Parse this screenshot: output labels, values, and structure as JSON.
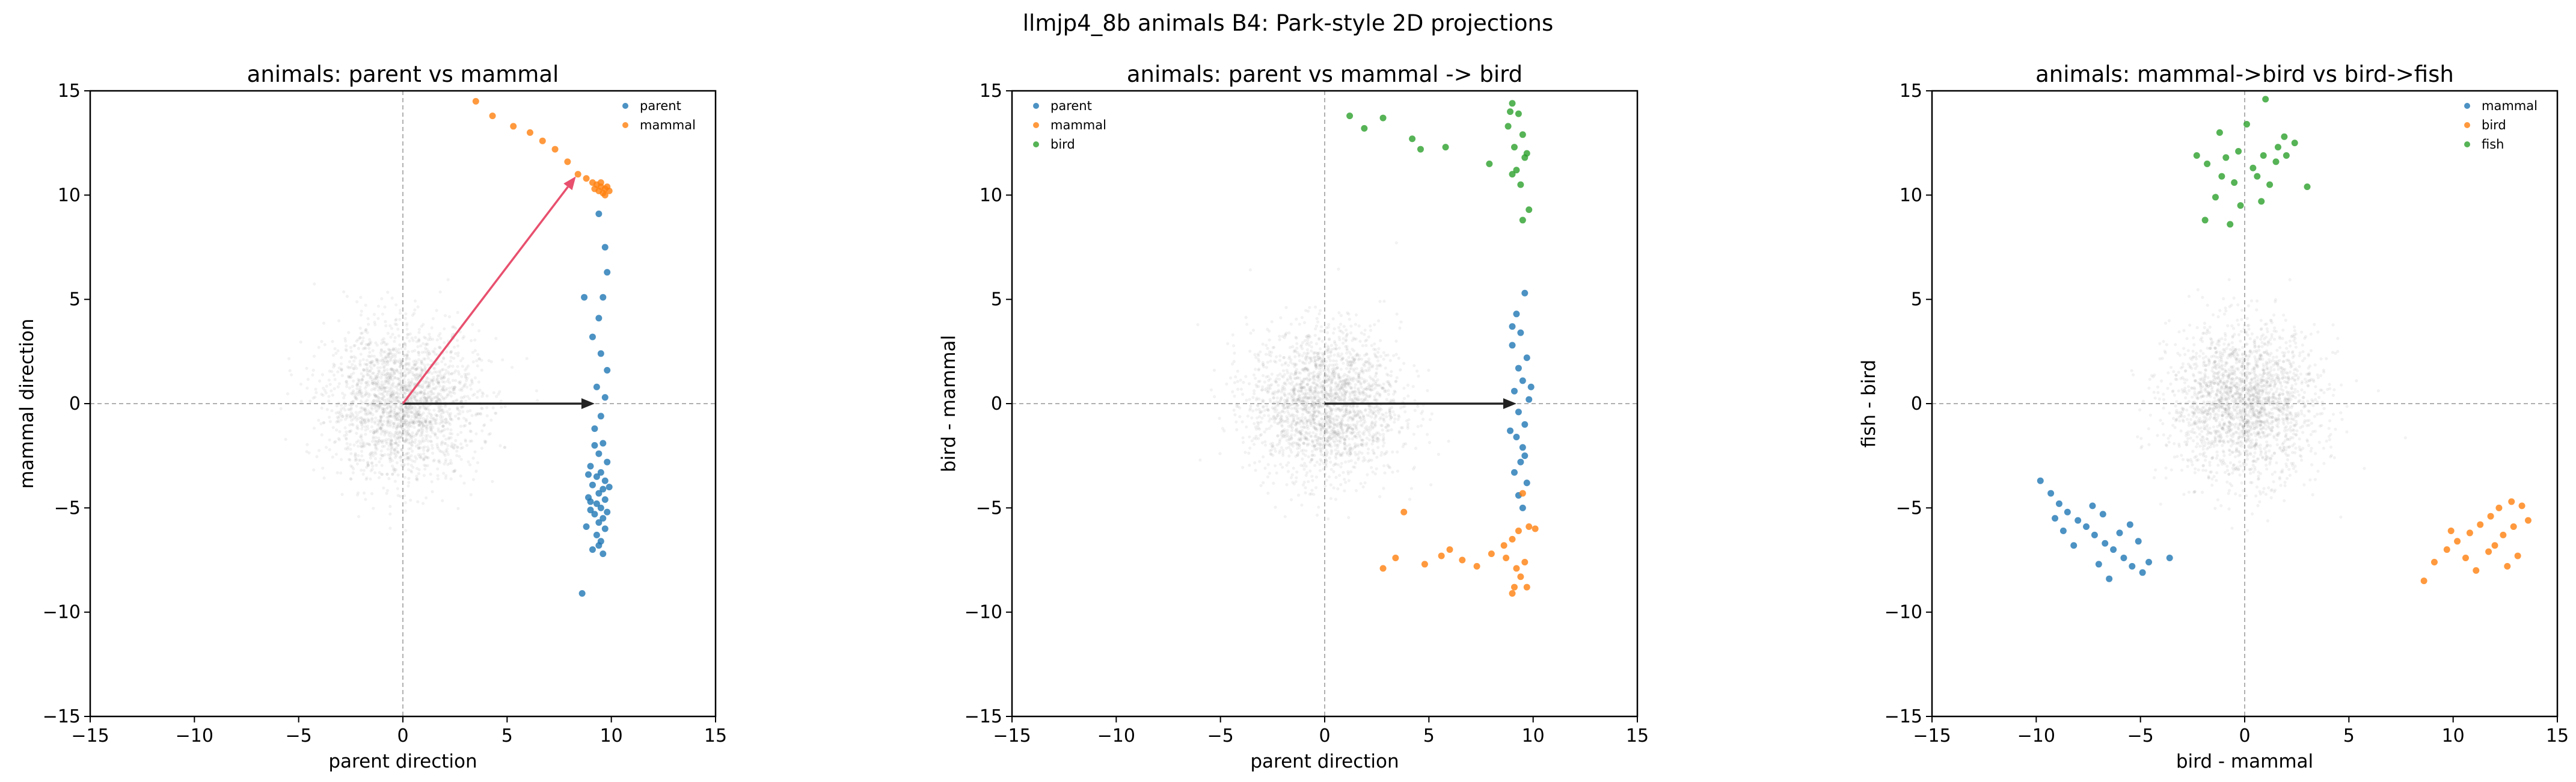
{
  "figure_title": "llmjp4_8b animals B4: Park-style 2D projections",
  "colors": {
    "blue": "#1f77b4",
    "orange": "#ff7f0e",
    "green": "#2ca02c",
    "gray_cloud": "#808080",
    "arrow_red": "#e8506e",
    "arrow_black": "#222222",
    "zero_line": "#b0b0b0"
  },
  "chart_data": [
    {
      "type": "scatter",
      "title": "animals: parent vs mammal",
      "xlabel": "parent direction",
      "ylabel": "mammal direction",
      "xlim": [
        -15,
        15
      ],
      "ylim": [
        -15,
        15
      ],
      "xticks": [
        "−15",
        "−10",
        "−5",
        "0",
        "5",
        "10",
        "15"
      ],
      "yticks": [
        "−15",
        "−10",
        "−5",
        "0",
        "5",
        "10",
        "15"
      ],
      "grid": false,
      "zero_lines": true,
      "legend_position": "upper-right",
      "background_cloud": {
        "center": [
          0,
          0
        ],
        "spread": 1.8,
        "count": 2200
      },
      "arrows": [
        {
          "from": [
            0,
            0
          ],
          "to": [
            9.2,
            0
          ],
          "color": "arrow_black"
        },
        {
          "from": [
            0,
            0
          ],
          "to": [
            8.3,
            10.9
          ],
          "color": "arrow_red"
        }
      ],
      "series": [
        {
          "name": "parent",
          "color": "blue",
          "points": [
            [
              9.4,
              9.1
            ],
            [
              9.7,
              7.5
            ],
            [
              9.8,
              6.3
            ],
            [
              9.6,
              5.1
            ],
            [
              8.7,
              5.1
            ],
            [
              9.4,
              4.1
            ],
            [
              9.1,
              3.2
            ],
            [
              9.5,
              2.4
            ],
            [
              9.8,
              1.6
            ],
            [
              9.3,
              0.8
            ],
            [
              9.7,
              0.3
            ],
            [
              9.5,
              -0.6
            ],
            [
              9.2,
              -1.2
            ],
            [
              9.6,
              -1.9
            ],
            [
              9.4,
              -2.4
            ],
            [
              9.8,
              -2.8
            ],
            [
              9.0,
              -3.0
            ],
            [
              9.5,
              -3.3
            ],
            [
              9.3,
              -3.5
            ],
            [
              9.7,
              -3.7
            ],
            [
              9.1,
              -3.9
            ],
            [
              9.6,
              -4.1
            ],
            [
              9.4,
              -4.3
            ],
            [
              8.9,
              -4.5
            ],
            [
              9.7,
              -4.6
            ],
            [
              9.3,
              -4.8
            ],
            [
              9.5,
              -5.0
            ],
            [
              9.0,
              -5.1
            ],
            [
              9.8,
              -5.2
            ],
            [
              9.2,
              -5.3
            ],
            [
              9.6,
              -5.5
            ],
            [
              9.4,
              -5.7
            ],
            [
              8.8,
              -5.9
            ],
            [
              9.7,
              -6.0
            ],
            [
              9.3,
              -6.3
            ],
            [
              9.5,
              -6.6
            ],
            [
              9.1,
              -7.0
            ],
            [
              9.6,
              -7.2
            ],
            [
              8.6,
              -9.1
            ],
            [
              9.2,
              -2.0
            ],
            [
              9.9,
              -4.0
            ],
            [
              8.9,
              -3.4
            ],
            [
              9.4,
              -6.8
            ],
            [
              9.0,
              -4.7
            ]
          ]
        },
        {
          "name": "mammal",
          "color": "orange",
          "points": [
            [
              3.5,
              14.5
            ],
            [
              4.3,
              13.8
            ],
            [
              5.3,
              13.3
            ],
            [
              6.1,
              13.0
            ],
            [
              6.7,
              12.6
            ],
            [
              7.3,
              12.2
            ],
            [
              7.9,
              11.6
            ],
            [
              8.4,
              11.0
            ],
            [
              8.8,
              10.8
            ],
            [
              9.1,
              10.6
            ],
            [
              9.3,
              10.5
            ],
            [
              9.5,
              10.4
            ],
            [
              9.7,
              10.3
            ],
            [
              9.4,
              10.2
            ],
            [
              9.6,
              10.1
            ],
            [
              9.8,
              10.4
            ],
            [
              9.2,
              10.3
            ],
            [
              9.9,
              10.2
            ],
            [
              9.5,
              10.6
            ],
            [
              9.7,
              10.0
            ]
          ]
        }
      ]
    },
    {
      "type": "scatter",
      "title": "animals: parent vs mammal -> bird",
      "xlabel": "parent direction",
      "ylabel": "bird - mammal",
      "xlim": [
        -15,
        15
      ],
      "ylim": [
        -15,
        15
      ],
      "xticks": [
        "−15",
        "−10",
        "−5",
        "0",
        "5",
        "10",
        "15"
      ],
      "yticks": [
        "−15",
        "−10",
        "−5",
        "0",
        "5",
        "10",
        "15"
      ],
      "grid": false,
      "zero_lines": true,
      "legend_position": "upper-left",
      "background_cloud": {
        "center": [
          0,
          0
        ],
        "spread": 1.8,
        "count": 2200
      },
      "arrows": [
        {
          "from": [
            0,
            0
          ],
          "to": [
            9.2,
            0
          ],
          "color": "arrow_black"
        }
      ],
      "series": [
        {
          "name": "parent",
          "color": "blue",
          "points": [
            [
              9.6,
              5.3
            ],
            [
              9.2,
              4.3
            ],
            [
              9.4,
              3.4
            ],
            [
              9.0,
              2.8
            ],
            [
              9.7,
              2.2
            ],
            [
              9.3,
              1.7
            ],
            [
              9.5,
              1.1
            ],
            [
              9.1,
              0.6
            ],
            [
              9.8,
              0.2
            ],
            [
              9.3,
              -0.4
            ],
            [
              9.6,
              -1.0
            ],
            [
              9.2,
              -1.6
            ],
            [
              9.5,
              -2.1
            ],
            [
              9.4,
              -2.8
            ],
            [
              9.1,
              -3.3
            ],
            [
              9.7,
              -3.8
            ],
            [
              9.3,
              -4.4
            ],
            [
              9.5,
              -5.0
            ],
            [
              8.9,
              -1.3
            ],
            [
              9.9,
              0.8
            ],
            [
              9.0,
              3.7
            ],
            [
              9.6,
              -2.5
            ]
          ]
        },
        {
          "name": "mammal",
          "color": "orange",
          "points": [
            [
              3.8,
              -5.2
            ],
            [
              2.8,
              -7.9
            ],
            [
              3.4,
              -7.4
            ],
            [
              4.8,
              -7.7
            ],
            [
              5.6,
              -7.3
            ],
            [
              6.0,
              -7.0
            ],
            [
              6.6,
              -7.5
            ],
            [
              7.3,
              -7.8
            ],
            [
              8.0,
              -7.2
            ],
            [
              8.6,
              -6.8
            ],
            [
              9.0,
              -6.5
            ],
            [
              9.2,
              -7.9
            ],
            [
              9.4,
              -8.3
            ],
            [
              9.1,
              -8.8
            ],
            [
              9.6,
              -7.6
            ],
            [
              9.3,
              -6.1
            ],
            [
              9.8,
              -5.9
            ],
            [
              8.7,
              -7.4
            ],
            [
              9.5,
              -4.3
            ],
            [
              9.0,
              -9.1
            ],
            [
              9.7,
              -8.8
            ],
            [
              10.1,
              -6.0
            ]
          ]
        },
        {
          "name": "bird",
          "color": "green",
          "points": [
            [
              1.2,
              13.8
            ],
            [
              1.9,
              13.2
            ],
            [
              2.8,
              13.7
            ],
            [
              4.2,
              12.7
            ],
            [
              5.8,
              12.3
            ],
            [
              4.6,
              12.2
            ],
            [
              7.9,
              11.5
            ],
            [
              9.0,
              14.4
            ],
            [
              9.3,
              13.9
            ],
            [
              8.8,
              13.3
            ],
            [
              9.5,
              12.9
            ],
            [
              9.1,
              12.3
            ],
            [
              9.6,
              11.8
            ],
            [
              9.2,
              11.2
            ],
            [
              9.4,
              10.5
            ],
            [
              9.8,
              9.3
            ],
            [
              9.5,
              8.8
            ],
            [
              8.9,
              14.0
            ],
            [
              9.7,
              12.0
            ],
            [
              9.0,
              11.0
            ]
          ]
        }
      ]
    },
    {
      "type": "scatter",
      "title": "animals: mammal->bird vs bird->fish",
      "xlabel": "bird - mammal",
      "ylabel": "fish - bird",
      "xlim": [
        -15,
        15
      ],
      "ylim": [
        -15,
        15
      ],
      "xticks": [
        "−15",
        "−10",
        "−5",
        "0",
        "5",
        "10",
        "15"
      ],
      "yticks": [
        "−15",
        "−10",
        "−5",
        "0",
        "5",
        "10",
        "15"
      ],
      "grid": false,
      "zero_lines": true,
      "legend_position": "upper-right",
      "background_cloud": {
        "center": [
          0,
          0
        ],
        "spread": 1.8,
        "count": 2200
      },
      "arrows": [],
      "series": [
        {
          "name": "mammal",
          "color": "blue",
          "points": [
            [
              -9.8,
              -3.7
            ],
            [
              -9.3,
              -4.3
            ],
            [
              -8.9,
              -4.8
            ],
            [
              -8.5,
              -5.2
            ],
            [
              -8.0,
              -5.6
            ],
            [
              -7.6,
              -5.9
            ],
            [
              -7.2,
              -6.3
            ],
            [
              -6.7,
              -6.7
            ],
            [
              -6.3,
              -7.0
            ],
            [
              -5.8,
              -7.4
            ],
            [
              -5.4,
              -7.8
            ],
            [
              -4.9,
              -8.1
            ],
            [
              -4.6,
              -7.6
            ],
            [
              -5.5,
              -5.8
            ],
            [
              -6.0,
              -6.2
            ],
            [
              -6.8,
              -5.3
            ],
            [
              -7.3,
              -4.9
            ],
            [
              -8.2,
              -6.8
            ],
            [
              -8.7,
              -6.1
            ],
            [
              -9.1,
              -5.5
            ],
            [
              -6.5,
              -8.4
            ],
            [
              -7.0,
              -7.7
            ],
            [
              -3.6,
              -7.4
            ],
            [
              -5.1,
              -6.6
            ]
          ]
        },
        {
          "name": "bird",
          "color": "orange",
          "points": [
            [
              8.6,
              -8.5
            ],
            [
              9.1,
              -7.6
            ],
            [
              9.7,
              -7.0
            ],
            [
              10.2,
              -6.6
            ],
            [
              10.8,
              -6.2
            ],
            [
              11.3,
              -5.8
            ],
            [
              11.8,
              -5.4
            ],
            [
              12.2,
              -5.0
            ],
            [
              12.8,
              -4.7
            ],
            [
              13.3,
              -4.9
            ],
            [
              12.9,
              -5.9
            ],
            [
              12.4,
              -6.3
            ],
            [
              11.7,
              -7.1
            ],
            [
              13.1,
              -7.3
            ],
            [
              12.6,
              -7.8
            ],
            [
              10.6,
              -7.4
            ],
            [
              11.1,
              -8.0
            ],
            [
              13.6,
              -5.6
            ],
            [
              12.0,
              -6.8
            ],
            [
              9.9,
              -6.1
            ]
          ]
        },
        {
          "name": "fish",
          "color": "green",
          "points": [
            [
              0.1,
              13.4
            ],
            [
              1.0,
              14.6
            ],
            [
              -1.2,
              13.0
            ],
            [
              1.9,
              12.8
            ],
            [
              2.4,
              12.5
            ],
            [
              -2.3,
              11.9
            ],
            [
              -1.8,
              11.5
            ],
            [
              -0.9,
              11.8
            ],
            [
              -0.3,
              12.1
            ],
            [
              0.4,
              11.3
            ],
            [
              0.9,
              11.9
            ],
            [
              1.5,
              11.6
            ],
            [
              2.0,
              11.9
            ],
            [
              -1.1,
              10.9
            ],
            [
              -0.5,
              10.6
            ],
            [
              0.6,
              10.9
            ],
            [
              1.2,
              10.5
            ],
            [
              -1.4,
              9.9
            ],
            [
              -0.2,
              9.5
            ],
            [
              0.8,
              9.7
            ],
            [
              -1.9,
              8.8
            ],
            [
              3.0,
              10.4
            ],
            [
              -0.7,
              8.6
            ],
            [
              1.6,
              12.3
            ]
          ]
        }
      ]
    }
  ]
}
